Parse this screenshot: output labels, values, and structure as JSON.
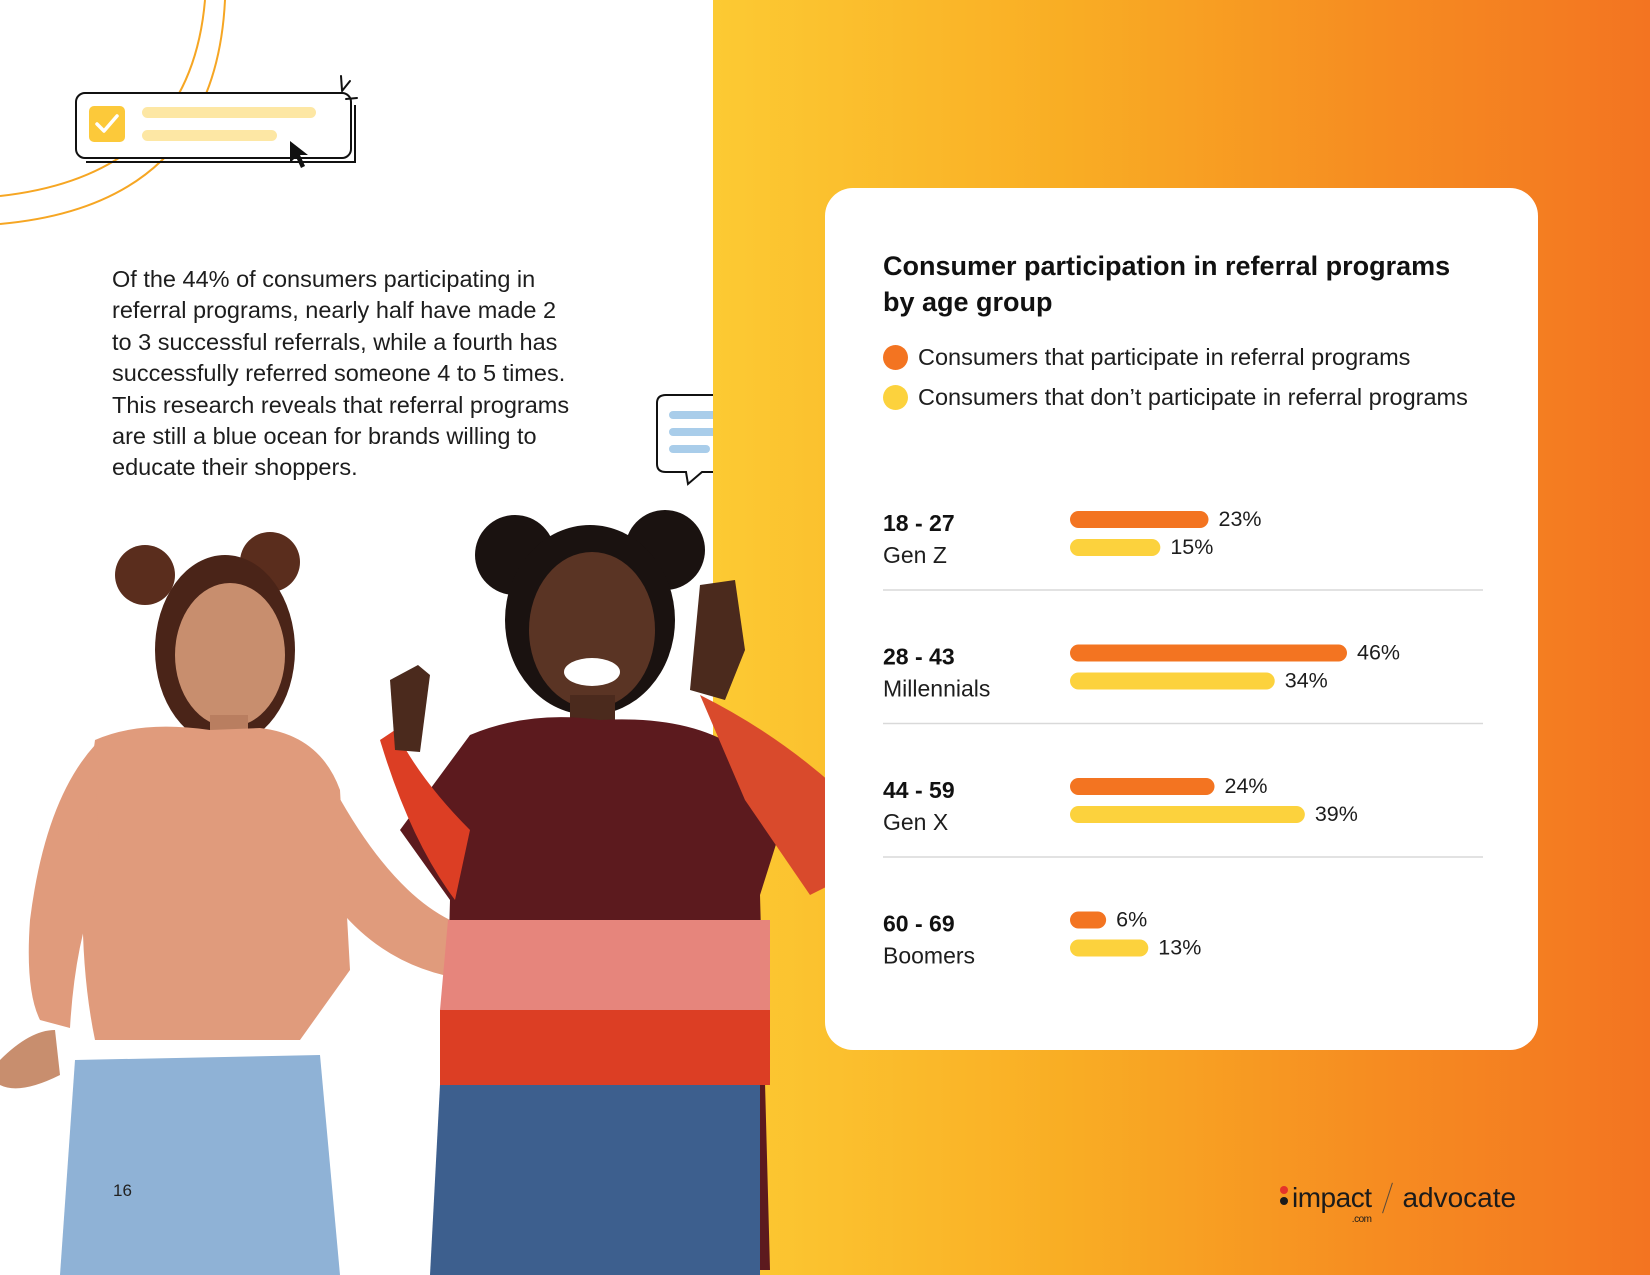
{
  "intro_text": "Of the 44% of consumers participating in referral programs, nearly half have made 2 to 3 successful referrals, while a fourth has successfully referred someone 4 to 5 times. This research reveals that referral programs are still a blue ocean for brands willing to educate their shoppers.",
  "page_number": "16",
  "icons": {
    "checklist": "checkbox-card-icon",
    "cursor": "cursor-icon",
    "chat": "chat-bubble-icon"
  },
  "colors": {
    "participate": "#f37421",
    "not_participate": "#fcd23d",
    "gradient_start": "#fcca33",
    "gradient_end": "#f37421"
  },
  "chart_data": {
    "type": "bar",
    "orientation": "horizontal",
    "title": "Consumer participation in referral programs by age group",
    "categories": [
      {
        "range": "18 - 27",
        "generation": "Gen Z"
      },
      {
        "range": "28 - 43",
        "generation": "Millennials"
      },
      {
        "range": "44 - 59",
        "generation": "Gen X"
      },
      {
        "range": "60 - 69",
        "generation": "Boomers"
      }
    ],
    "series": [
      {
        "name": "Consumers that participate in referral programs",
        "values": [
          23,
          46,
          24,
          6
        ],
        "labels": [
          "23%",
          "46%",
          "24%",
          "6%"
        ]
      },
      {
        "name": "Consumers that don’t participate in referral programs",
        "values": [
          15,
          34,
          39,
          13
        ],
        "labels": [
          "15%",
          "34%",
          "39%",
          "13%"
        ]
      }
    ],
    "xlim": [
      0,
      46
    ],
    "legend_position": "top-left",
    "grid": false
  },
  "logo": {
    "brand": "impact",
    "suffix": ".com",
    "product": "advocate"
  }
}
